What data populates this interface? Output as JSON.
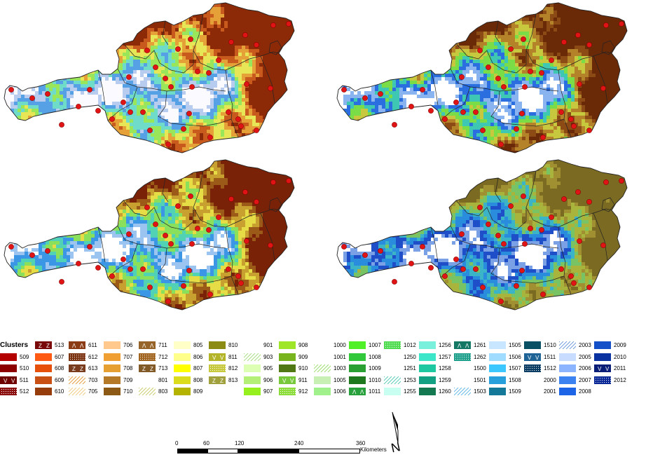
{
  "maps": [
    {
      "id": "tl",
      "palette": [
        "#fbfbff",
        "#b8ccf0",
        "#56a0e6",
        "#6edcc8",
        "#9ae65a",
        "#e6e656",
        "#e6a038",
        "#c85a1e",
        "#8c2a08"
      ]
    },
    {
      "id": "tr",
      "palette": [
        "#ffffff",
        "#8ab4f0",
        "#2a6ee0",
        "#3ec8b4",
        "#7adc46",
        "#c8c83e",
        "#b48228",
        "#8c4a14",
        "#6a2a08"
      ]
    },
    {
      "id": "bl",
      "palette": [
        "#ffffff",
        "#9cc4f0",
        "#3c96e6",
        "#52d2b4",
        "#8ae05a",
        "#e6dc46",
        "#c8a030",
        "#9c5a18",
        "#7a2208"
      ]
    },
    {
      "id": "br",
      "palette": [
        "#ffffff",
        "#7aa0e6",
        "#1e4ec8",
        "#2a8cdc",
        "#3cb4c8",
        "#78c464",
        "#a8b43c",
        "#a09032",
        "#7a6a22"
      ]
    }
  ],
  "legend": {
    "title": "Clusters",
    "columns": [
      [
        {
          "label": "509",
          "color": "#b40000"
        },
        {
          "label": "510",
          "color": "#8c0000"
        },
        {
          "label": "511",
          "color": "#6e0000",
          "pattern": "v"
        },
        {
          "label": "512",
          "color": "#8c1010",
          "pattern": "dots"
        }
      ],
      [
        {
          "label": "513",
          "color": "#7a0a0a",
          "pattern": "z"
        },
        {
          "label": "607",
          "color": "#ff5a14"
        },
        {
          "label": "608",
          "color": "#e6500a"
        },
        {
          "label": "609",
          "color": "#c85014"
        },
        {
          "label": "610",
          "color": "#963c0a"
        }
      ],
      [
        {
          "label": "611",
          "color": "#8c3c14",
          "pattern": "lambda"
        },
        {
          "label": "612",
          "color": "#7a3210",
          "pattern": "dots"
        },
        {
          "label": "613",
          "color": "#7a3c1e",
          "pattern": "z"
        },
        {
          "label": "703",
          "color": "#ffffff",
          "pattern": "hatch",
          "hatch": "#e69632"
        },
        {
          "label": "705",
          "color": "#ffffff",
          "pattern": "hatch",
          "hatch": "#f0c878"
        }
      ],
      [
        {
          "label": "706",
          "color": "#ffc88c"
        },
        {
          "label": "707",
          "color": "#f0a032"
        },
        {
          "label": "708",
          "color": "#e6a032"
        },
        {
          "label": "709",
          "color": "#b47a28"
        },
        {
          "label": "710",
          "color": "#8c5a14"
        }
      ],
      [
        {
          "label": "711",
          "color": "#966428",
          "pattern": "lambda"
        },
        {
          "label": "712",
          "color": "#a0641e",
          "pattern": "dots"
        },
        {
          "label": "713",
          "color": "#825a28",
          "pattern": "z"
        },
        {
          "label": "801",
          "color": "#ffffff"
        },
        {
          "label": "803",
          "color": "#ffffff",
          "pattern": "hatch",
          "hatch": "#c8c864"
        }
      ],
      [
        {
          "label": "805",
          "color": "#ffffc8"
        },
        {
          "label": "806",
          "color": "#ffff8c"
        },
        {
          "label": "807",
          "color": "#ffff00"
        },
        {
          "label": "808",
          "color": "#dcdc1e"
        },
        {
          "label": "809",
          "color": "#b4b400"
        }
      ],
      [
        {
          "label": "810",
          "color": "#8c8c14"
        },
        {
          "label": "811",
          "color": "#b4b428",
          "pattern": "v"
        },
        {
          "label": "812",
          "color": "#c8c83c",
          "pattern": "dots"
        },
        {
          "label": "813",
          "color": "#a0a03c",
          "pattern": "z"
        }
      ],
      [
        {
          "label": "901",
          "color": "#ffffff"
        },
        {
          "label": "903",
          "color": "#ffffff",
          "pattern": "hatch",
          "hatch": "#a0dc78"
        },
        {
          "label": "905",
          "color": "#dcffb4"
        },
        {
          "label": "906",
          "color": "#b4f078"
        },
        {
          "label": "907",
          "color": "#96f01e"
        }
      ],
      [
        {
          "label": "908",
          "color": "#a0e628"
        },
        {
          "label": "909",
          "color": "#78b41e"
        },
        {
          "label": "910",
          "color": "#507814"
        },
        {
          "label": "911",
          "color": "#78c83c",
          "pattern": "v"
        },
        {
          "label": "912",
          "color": "#8cdc3c",
          "pattern": "dots"
        }
      ],
      [
        {
          "label": "1000",
          "color": "#ffffff"
        },
        {
          "label": "1001",
          "color": "#ffffff"
        },
        {
          "label": "1003",
          "color": "#ffffff",
          "pattern": "hatch",
          "hatch": "#96dc64"
        },
        {
          "label": "1005",
          "color": "#c8f0b4"
        },
        {
          "label": "1006",
          "color": "#a0f08c"
        }
      ],
      [
        {
          "label": "1007",
          "color": "#50f028"
        },
        {
          "label": "1008",
          "color": "#32c83c"
        },
        {
          "label": "1009",
          "color": "#2aa032"
        },
        {
          "label": "1010",
          "color": "#1e781e"
        },
        {
          "label": "1011",
          "color": "#28a03c",
          "pattern": "lambda"
        }
      ],
      [
        {
          "label": "1012",
          "color": "#50dc50",
          "pattern": "dots"
        },
        {
          "label": "1250",
          "color": "#ffffff"
        },
        {
          "label": "1251",
          "color": "#ffffff"
        },
        {
          "label": "1253",
          "color": "#ffffff",
          "pattern": "hatch",
          "hatch": "#50c8b4"
        },
        {
          "label": "1255",
          "color": "#c8fff0"
        }
      ],
      [
        {
          "label": "1256",
          "color": "#78f0dc"
        },
        {
          "label": "1257",
          "color": "#3ce6c8"
        },
        {
          "label": "1258",
          "color": "#1ec8a0"
        },
        {
          "label": "1259",
          "color": "#14a082"
        },
        {
          "label": "1260",
          "color": "#147850"
        }
      ],
      [
        {
          "label": "1261",
          "color": "#147864",
          "pattern": "lambda"
        },
        {
          "label": "1262",
          "color": "#1ea08c",
          "pattern": "dots"
        },
        {
          "label": "1500",
          "color": "#ffffff"
        },
        {
          "label": "1501",
          "color": "#ffffff"
        },
        {
          "label": "1503",
          "color": "#ffffff",
          "pattern": "hatch",
          "hatch": "#5ab4e6"
        }
      ],
      [
        {
          "label": "1505",
          "color": "#c8e6ff"
        },
        {
          "label": "1506",
          "color": "#a0dcff"
        },
        {
          "label": "1507",
          "color": "#3cc8ff"
        },
        {
          "label": "1508",
          "color": "#28a0dc"
        },
        {
          "label": "1509",
          "color": "#147898"
        }
      ],
      [
        {
          "label": "1510",
          "color": "#0a5064"
        },
        {
          "label": "1511",
          "color": "#1e6496",
          "pattern": "v"
        },
        {
          "label": "1512",
          "color": "#0a3c64",
          "pattern": "dots"
        },
        {
          "label": "2000",
          "color": "#ffffff"
        },
        {
          "label": "2001",
          "color": "#ffffff"
        }
      ],
      [
        {
          "label": "2003",
          "color": "#ffffff",
          "pattern": "hatch",
          "hatch": "#6496dc"
        },
        {
          "label": "2005",
          "color": "#c8dcff"
        },
        {
          "label": "2006",
          "color": "#8cb4ff"
        },
        {
          "label": "2007",
          "color": "#3c82f0"
        },
        {
          "label": "2008",
          "color": "#1e64e6"
        }
      ],
      [
        {
          "label": "2009",
          "color": "#1450c8"
        },
        {
          "label": "2010",
          "color": "#0a32a0"
        },
        {
          "label": "2011",
          "color": "#0a1e78",
          "pattern": "v"
        },
        {
          "label": "2012",
          "color": "#0a2896",
          "pattern": "dots"
        }
      ]
    ]
  },
  "scalebar": {
    "ticks": [
      "0",
      "60",
      "120",
      "240",
      "360"
    ],
    "units": "Kilometers"
  },
  "north": {
    "label": "N"
  }
}
